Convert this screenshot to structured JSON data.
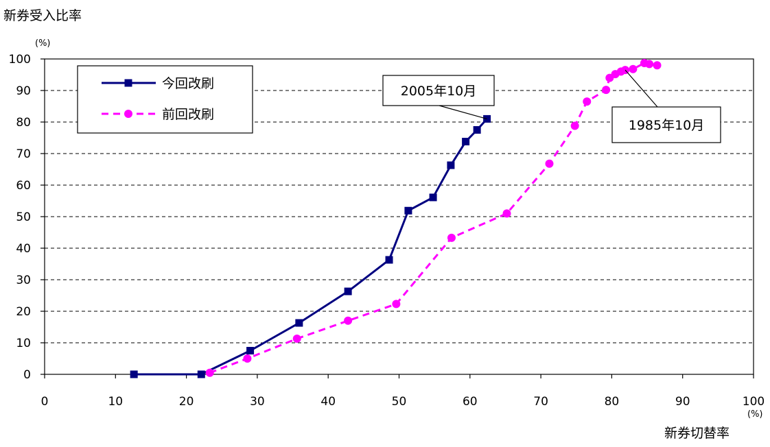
{
  "chart_data": {
    "type": "line",
    "ylabel": "新券受入比率",
    "y_unit": "(%)",
    "xlabel": "新券切替率",
    "x_unit": "(%)",
    "xlim": [
      0,
      100
    ],
    "ylim": [
      0,
      100
    ],
    "x_ticks": [
      0,
      10,
      20,
      30,
      40,
      50,
      60,
      70,
      80,
      90,
      100
    ],
    "y_ticks": [
      0,
      10,
      20,
      30,
      40,
      50,
      60,
      70,
      80,
      90,
      100
    ],
    "grid": "horizontal dashed",
    "legend_position": "top-left",
    "series": [
      {
        "name": "今回改刷",
        "color": "#000080",
        "line_style": "solid",
        "marker": "square",
        "points": [
          [
            12.6,
            0
          ],
          [
            22.1,
            0
          ],
          [
            29.0,
            7.5
          ],
          [
            35.9,
            16.3
          ],
          [
            42.8,
            26.3
          ],
          [
            48.6,
            36.3
          ],
          [
            51.3,
            51.9
          ],
          [
            54.8,
            56.1
          ],
          [
            57.3,
            66.3
          ],
          [
            59.4,
            73.8
          ],
          [
            61.0,
            77.5
          ],
          [
            62.4,
            81.0
          ]
        ]
      },
      {
        "name": "前回改刷",
        "color": "#ff00ff",
        "line_style": "dashed",
        "marker": "circle",
        "points": [
          [
            23.3,
            0.5
          ],
          [
            28.6,
            5.0
          ],
          [
            35.6,
            11.3
          ],
          [
            42.8,
            17.0
          ],
          [
            49.6,
            22.3
          ],
          [
            57.4,
            43.3
          ],
          [
            65.2,
            51.0
          ],
          [
            71.2,
            66.8
          ],
          [
            74.8,
            78.8
          ],
          [
            76.5,
            86.5
          ],
          [
            79.2,
            90.2
          ],
          [
            79.7,
            94.0
          ],
          [
            80.5,
            95.2
          ],
          [
            81.3,
            96.0
          ],
          [
            81.9,
            96.5
          ],
          [
            83.0,
            96.8
          ],
          [
            84.6,
            98.7
          ],
          [
            85.3,
            98.4
          ],
          [
            86.4,
            98.0
          ]
        ]
      }
    ],
    "annotations": [
      {
        "text": "2005年10月",
        "series": 0,
        "point": 11
      },
      {
        "text": "1985年10月",
        "series": 1,
        "point": 14
      }
    ]
  }
}
